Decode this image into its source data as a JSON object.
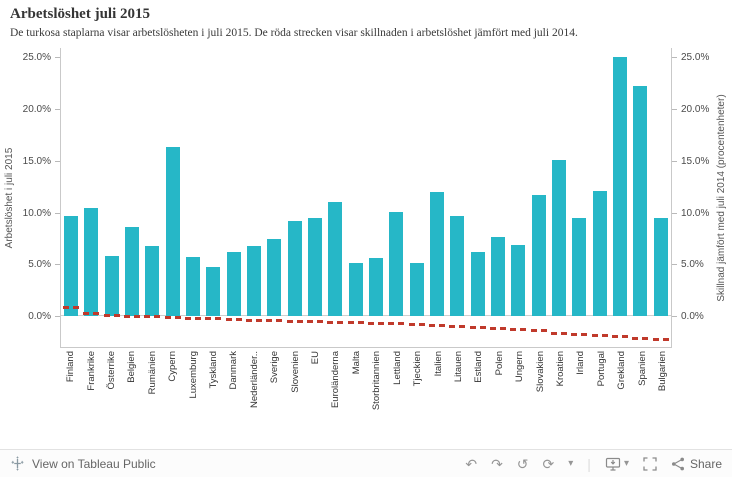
{
  "header": {
    "title": "Arbetslöshet juli 2015",
    "subtitle": "De turkosa staplarna visar arbetslösheten i juli 2015. De röda strecken visar skillnaden i arbetslöshet jämfört med juli 2014."
  },
  "axes": {
    "left_label": "Arbetslöshet i juli 2015",
    "right_label": "Skillnad jämfört med juli 2014 (procentenheter)"
  },
  "chart_data": {
    "type": "bar",
    "title": "Arbetslöshet juli 2015",
    "categories": [
      "Finland",
      "Frankrike",
      "Österrike",
      "Belgien",
      "Rumänien",
      "Cypern",
      "Luxemburg",
      "Tyskland",
      "Danmark",
      "Nederländer..",
      "Sverige",
      "Slovenien",
      "EU",
      "Euroländerna",
      "Malta",
      "Storbritannien",
      "Lettland",
      "Tjeckien",
      "Italien",
      "Litauen",
      "Estland",
      "Polen",
      "Ungern",
      "Slovakien",
      "Kroatien",
      "Irland",
      "Portugal",
      "Grekland",
      "Spanien",
      "Bulgarien"
    ],
    "series": [
      {
        "name": "Arbetslöshet i juli 2015 (%)",
        "values": [
          9.7,
          10.4,
          5.8,
          8.6,
          6.8,
          16.3,
          5.7,
          4.7,
          6.2,
          6.8,
          7.4,
          9.2,
          9.5,
          11.0,
          5.1,
          5.6,
          10.1,
          5.1,
          12.0,
          9.7,
          6.2,
          7.6,
          6.9,
          11.7,
          15.1,
          9.5,
          12.1,
          25.0,
          22.2,
          9.5
        ]
      },
      {
        "name": "Skillnad jämfört med juli 2014 (procentenheter)",
        "values": [
          0.8,
          0.2,
          0.0,
          -0.1,
          -0.1,
          -0.2,
          -0.3,
          -0.3,
          -0.4,
          -0.5,
          -0.5,
          -0.6,
          -0.6,
          -0.7,
          -0.7,
          -0.8,
          -0.8,
          -0.9,
          -1.0,
          -1.1,
          -1.2,
          -1.3,
          -1.4,
          -1.5,
          -1.7,
          -1.8,
          -1.9,
          -2.0,
          -2.2,
          -2.3
        ]
      }
    ],
    "ylim": [
      -3,
      26
    ],
    "ticks": [
      {
        "value": 0,
        "label": "0.0%"
      },
      {
        "value": 5,
        "label": "5.0%"
      },
      {
        "value": 10,
        "label": "10.0%"
      },
      {
        "value": 15,
        "label": "15.0%"
      },
      {
        "value": 20,
        "label": "20.0%"
      },
      {
        "value": 25,
        "label": "25.0%"
      }
    ],
    "bar_color": "#26b7c7",
    "diff_color": "#c0392b",
    "grid": false,
    "legend": "none"
  },
  "footer": {
    "brand": "View on Tableau Public",
    "share_label": "Share",
    "icons": {
      "undo": "↶",
      "redo": "↷",
      "revert": "↺",
      "refresh": "⟳",
      "caret": "▾",
      "separator": "|"
    }
  }
}
